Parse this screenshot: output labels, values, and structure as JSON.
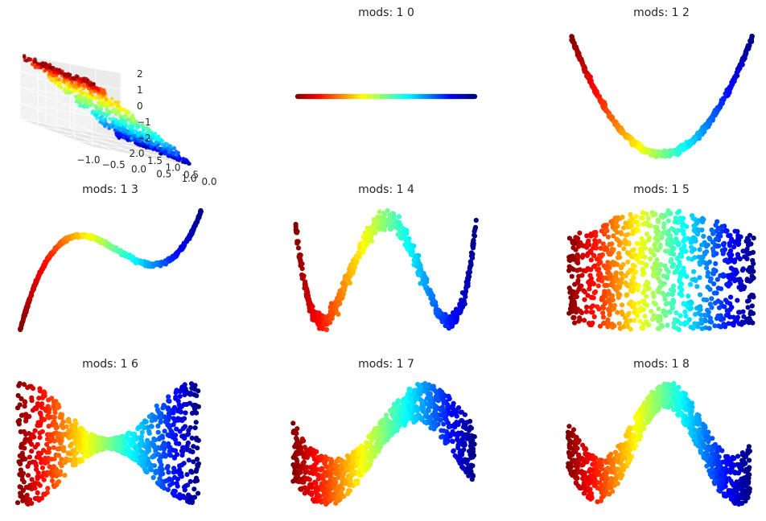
{
  "chart_data": [
    {
      "type": "scatter3d",
      "title": "",
      "x_ticks": [
        "−1.0",
        "−0.5",
        "0.0",
        "0.5",
        "1.0"
      ],
      "y_ticks": [
        "0.0",
        "0.5",
        "1.0",
        "1.5",
        "2.0"
      ],
      "z_ticks": [
        "2",
        "1",
        "0",
        "−1",
        "−2"
      ],
      "xlim": [
        -1.0,
        1.0
      ],
      "ylim": [
        0.0,
        2.0
      ],
      "zlim": [
        -2,
        2
      ],
      "n_points": 900,
      "colormap": "jet",
      "grid": true
    },
    {
      "type": "scatter",
      "title": "mods: 1 0",
      "shape": "line",
      "noise": 0.0,
      "n_points": 600,
      "colormap": "jet",
      "axis": "off"
    },
    {
      "type": "scatter",
      "title": "mods: 1 2",
      "shape": "parabola",
      "noise": 0.012,
      "n_points": 700,
      "colormap": "jet",
      "axis": "off"
    },
    {
      "type": "scatter",
      "title": "mods: 1 3",
      "shape": "cubic",
      "noise": 0.012,
      "n_points": 700,
      "colormap": "jet",
      "axis": "off"
    },
    {
      "type": "scatter",
      "title": "mods: 1 4",
      "shape": "quartic",
      "noise": 0.03,
      "n_points": 800,
      "colormap": "jet",
      "axis": "off"
    },
    {
      "type": "scatter",
      "title": "mods: 1 5",
      "shape": "barrel",
      "noise": 0.0,
      "n_points": 1000,
      "colormap": "jet",
      "axis": "off"
    },
    {
      "type": "scatter",
      "title": "mods: 1 6",
      "shape": "hourglass",
      "noise": 0.0,
      "n_points": 1000,
      "colormap": "jet",
      "axis": "off"
    },
    {
      "type": "scatter",
      "title": "mods: 1 7",
      "shape": "wave3",
      "noise": 0.0,
      "n_points": 1000,
      "colormap": "jet",
      "axis": "off"
    },
    {
      "type": "scatter",
      "title": "mods: 1 8",
      "shape": "wave4",
      "noise": 0.0,
      "n_points": 1000,
      "colormap": "jet",
      "axis": "off"
    }
  ]
}
